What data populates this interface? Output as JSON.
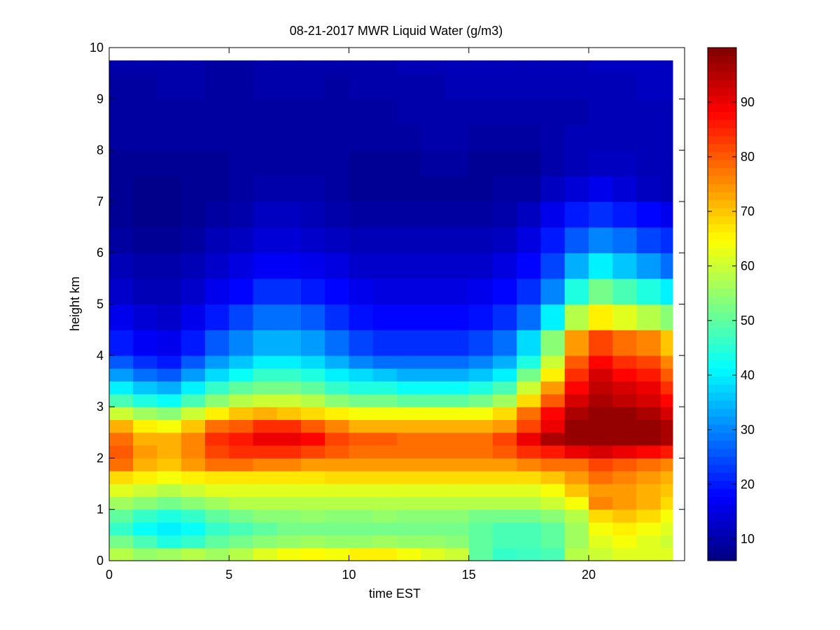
{
  "chart_data": {
    "type": "heatmap",
    "title": "08-21-2017 MWR Liquid Water (g/m3)",
    "xlabel": "time EST",
    "ylabel": "height km",
    "xlim": [
      0,
      24
    ],
    "ylim": [
      0,
      10
    ],
    "x_ticks": [
      0,
      5,
      10,
      15,
      20
    ],
    "y_ticks": [
      0,
      1,
      2,
      3,
      4,
      5,
      6,
      7,
      8,
      9,
      10
    ],
    "x_tick_labels": [
      "0",
      "5",
      "10",
      "15",
      "20"
    ],
    "y_tick_labels": [
      "0",
      "1",
      "2",
      "3",
      "4",
      "5",
      "6",
      "7",
      "8",
      "9",
      "10"
    ],
    "colormap": "jet",
    "clim": [
      6,
      100
    ],
    "colorbar_ticks": [
      10,
      20,
      30,
      40,
      50,
      60,
      70,
      80,
      90
    ],
    "colorbar_tick_labels": [
      "10",
      "20",
      "30",
      "40",
      "50",
      "60",
      "70",
      "80",
      "90"
    ],
    "x_columns": [
      0,
      1,
      2,
      3,
      4,
      5,
      6,
      7,
      8,
      9,
      10,
      11,
      12,
      13,
      14,
      15,
      16,
      17,
      18,
      19,
      20,
      21,
      22,
      23
    ],
    "x_columns_end": 23.5,
    "y_levels": [
      0,
      0.25,
      0.5,
      0.75,
      1,
      1.25,
      1.5,
      1.75,
      2,
      2.25,
      2.5,
      2.75,
      3,
      3.25,
      3.5,
      3.75,
      4,
      4.5,
      5,
      5.5,
      6,
      6.5,
      7,
      7.5,
      8,
      8.5,
      9,
      9.5
    ],
    "y_levels_end": 9.75,
    "values": [
      [
        58,
        55,
        56,
        58,
        56,
        58,
        62,
        64,
        65,
        64,
        66,
        66,
        64,
        62,
        60,
        50,
        46,
        47,
        48,
        58,
        60,
        62,
        62,
        62
      ],
      [
        52,
        48,
        44,
        46,
        50,
        52,
        54,
        55,
        56,
        55,
        55,
        56,
        55,
        55,
        54,
        50,
        48,
        48,
        50,
        56,
        62,
        64,
        62,
        60
      ],
      [
        46,
        42,
        40,
        42,
        46,
        48,
        50,
        52,
        52,
        52,
        52,
        52,
        52,
        52,
        52,
        50,
        48,
        48,
        50,
        56,
        64,
        66,
        64,
        62
      ],
      [
        50,
        46,
        44,
        46,
        50,
        52,
        54,
        54,
        55,
        54,
        54,
        55,
        54,
        54,
        54,
        52,
        52,
        52,
        54,
        58,
        68,
        70,
        68,
        64
      ],
      [
        56,
        54,
        52,
        54,
        56,
        58,
        58,
        58,
        58,
        58,
        58,
        58,
        58,
        58,
        58,
        58,
        58,
        58,
        60,
        64,
        76,
        74,
        72,
        68
      ],
      [
        62,
        60,
        58,
        60,
        62,
        62,
        62,
        62,
        62,
        62,
        62,
        62,
        62,
        62,
        62,
        62,
        62,
        62,
        64,
        70,
        74,
        74,
        72,
        70
      ],
      [
        68,
        66,
        64,
        66,
        67,
        67,
        67,
        67,
        67,
        68,
        68,
        68,
        68,
        68,
        68,
        68,
        68,
        68,
        70,
        74,
        78,
        76,
        74,
        72
      ],
      [
        78,
        72,
        70,
        74,
        78,
        78,
        76,
        76,
        74,
        74,
        74,
        74,
        74,
        74,
        74,
        74,
        74,
        76,
        78,
        78,
        82,
        80,
        78,
        76
      ],
      [
        80,
        74,
        72,
        76,
        82,
        84,
        84,
        84,
        82,
        80,
        78,
        78,
        78,
        78,
        78,
        78,
        80,
        84,
        86,
        90,
        92,
        90,
        88,
        86
      ],
      [
        78,
        72,
        72,
        76,
        84,
        86,
        90,
        90,
        88,
        82,
        80,
        80,
        78,
        78,
        78,
        78,
        82,
        90,
        96,
        98,
        98,
        98,
        98,
        96
      ],
      [
        72,
        66,
        64,
        70,
        78,
        80,
        84,
        84,
        80,
        76,
        72,
        72,
        72,
        72,
        72,
        72,
        74,
        82,
        90,
        98,
        98,
        98,
        98,
        96
      ],
      [
        60,
        56,
        54,
        60,
        66,
        70,
        72,
        70,
        68,
        66,
        64,
        64,
        64,
        64,
        64,
        64,
        68,
        78,
        88,
        96,
        98,
        98,
        96,
        92
      ],
      [
        48,
        44,
        42,
        48,
        54,
        58,
        60,
        60,
        58,
        54,
        52,
        52,
        50,
        50,
        50,
        52,
        56,
        68,
        80,
        92,
        96,
        94,
        92,
        88
      ],
      [
        40,
        36,
        34,
        40,
        46,
        50,
        52,
        52,
        50,
        46,
        44,
        44,
        42,
        42,
        42,
        44,
        48,
        60,
        74,
        88,
        94,
        92,
        90,
        84
      ],
      [
        32,
        28,
        26,
        32,
        38,
        42,
        46,
        46,
        44,
        40,
        38,
        36,
        34,
        34,
        34,
        36,
        40,
        52,
        66,
        84,
        92,
        88,
        86,
        80
      ],
      [
        26,
        22,
        20,
        26,
        32,
        36,
        40,
        40,
        38,
        34,
        30,
        28,
        28,
        28,
        28,
        30,
        34,
        44,
        60,
        80,
        88,
        84,
        82,
        76
      ],
      [
        20,
        17,
        16,
        20,
        26,
        30,
        34,
        34,
        32,
        28,
        24,
        22,
        22,
        22,
        22,
        24,
        28,
        38,
        54,
        74,
        82,
        78,
        76,
        70
      ],
      [
        16,
        14,
        13,
        16,
        20,
        24,
        28,
        28,
        26,
        22,
        19,
        18,
        18,
        18,
        18,
        19,
        22,
        28,
        40,
        58,
        66,
        62,
        58,
        54
      ],
      [
        13,
        11,
        11,
        13,
        16,
        18,
        22,
        22,
        20,
        18,
        16,
        15,
        15,
        15,
        15,
        16,
        18,
        22,
        30,
        44,
        52,
        48,
        44,
        40
      ],
      [
        11,
        10,
        10,
        11,
        13,
        15,
        17,
        17,
        16,
        15,
        13,
        13,
        13,
        13,
        13,
        13,
        15,
        18,
        24,
        34,
        40,
        36,
        32,
        28
      ],
      [
        9,
        8,
        8,
        9,
        11,
        12,
        14,
        14,
        13,
        12,
        11,
        11,
        11,
        11,
        11,
        11,
        12,
        15,
        20,
        26,
        30,
        28,
        24,
        22
      ],
      [
        8,
        7,
        7,
        8,
        9,
        10,
        12,
        12,
        11,
        10,
        9,
        9,
        9,
        9,
        9,
        9,
        10,
        12,
        16,
        20,
        22,
        20,
        18,
        16
      ],
      [
        8,
        7,
        7,
        8,
        8,
        9,
        10,
        10,
        10,
        9,
        8,
        8,
        8,
        8,
        8,
        8,
        9,
        9,
        12,
        14,
        16,
        14,
        12,
        11
      ],
      [
        8,
        8,
        8,
        8,
        8,
        9,
        9,
        9,
        9,
        9,
        8,
        8,
        8,
        9,
        9,
        8,
        8,
        8,
        10,
        11,
        12,
        12,
        11,
        11
      ],
      [
        9,
        9,
        9,
        9,
        9,
        9,
        9,
        9,
        9,
        9,
        9,
        9,
        9,
        10,
        10,
        9,
        9,
        9,
        10,
        11,
        11,
        11,
        11,
        11
      ],
      [
        9,
        9,
        9,
        9,
        9,
        9,
        9,
        9,
        9,
        9,
        9,
        9,
        10,
        10,
        10,
        10,
        10,
        10,
        10,
        10,
        11,
        11,
        11,
        11
      ],
      [
        9,
        9,
        10,
        10,
        9,
        9,
        10,
        10,
        10,
        9,
        10,
        10,
        10,
        10,
        11,
        11,
        11,
        11,
        11,
        11,
        11,
        11,
        12,
        12
      ],
      [
        10,
        10,
        10,
        10,
        9,
        9,
        10,
        10,
        10,
        10,
        10,
        10,
        11,
        11,
        11,
        11,
        11,
        11,
        11,
        11,
        12,
        12,
        12,
        12
      ]
    ]
  }
}
